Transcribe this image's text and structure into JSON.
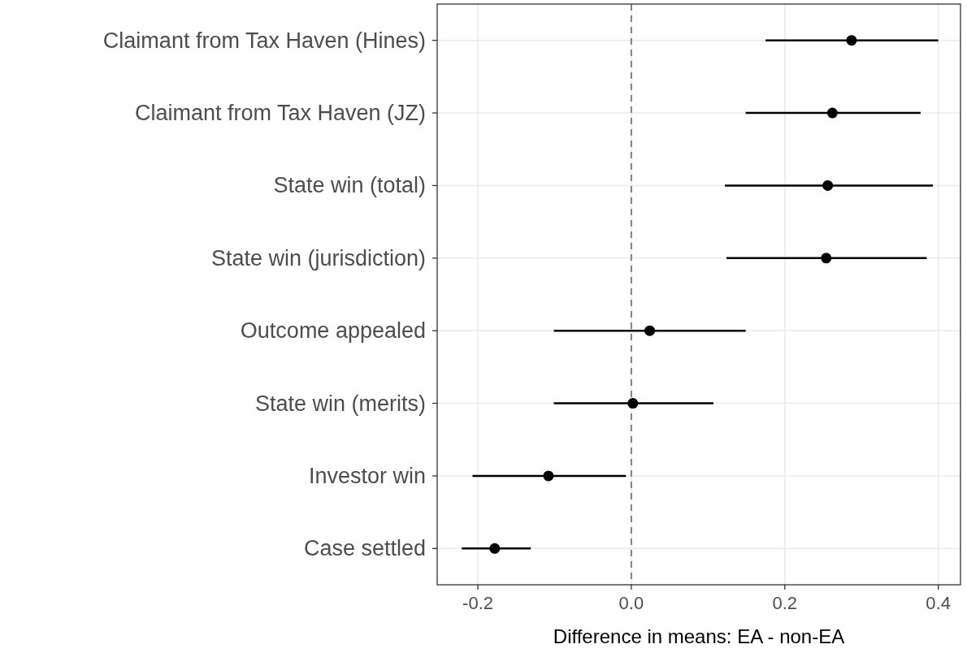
{
  "chart_data": {
    "type": "scatter",
    "orientation": "horizontal",
    "categories": [
      "Claimant from Tax Haven (Hines)",
      "Claimant from Tax Haven (JZ)",
      "State win (total)",
      "State win (jurisdiction)",
      "Outcome appealed",
      "State win (merits)",
      "Investor win",
      "Case settled"
    ],
    "values": [
      0.287,
      0.262,
      0.256,
      0.254,
      0.024,
      0.002,
      -0.108,
      -0.178
    ],
    "errors": [
      [
        0.175,
        0.4
      ],
      [
        0.149,
        0.377
      ],
      [
        0.122,
        0.393
      ],
      [
        0.124,
        0.385
      ],
      [
        -0.101,
        0.149
      ],
      [
        -0.101,
        0.107
      ],
      [
        -0.207,
        -0.007
      ],
      [
        -0.221,
        -0.131
      ]
    ],
    "color": "#000000",
    "marker": "circle",
    "xlabel": "Difference in means: EA - non-EA",
    "xlim": [
      -0.253,
      0.429
    ],
    "xticks": [
      {
        "value": -0.2,
        "label": "-0.2"
      },
      {
        "value": 0,
        "label": "0.0"
      },
      {
        "value": 0.2,
        "label": "0.2"
      },
      {
        "value": 0.4,
        "label": "0.4"
      }
    ],
    "ref_lines": [
      {
        "axis": "x",
        "value": 0,
        "label": null,
        "color": "#808080",
        "line_style": "dashed"
      }
    ],
    "grid": true
  }
}
